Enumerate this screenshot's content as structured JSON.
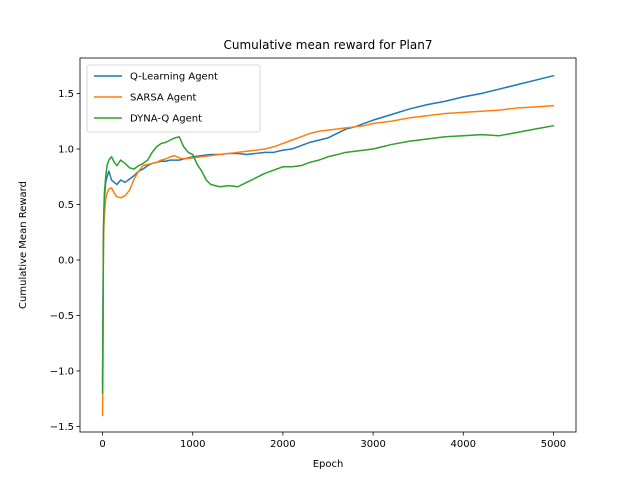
{
  "chart_data": {
    "type": "line",
    "title": "Cumulative mean reward for Plan7",
    "xlabel": "Epoch",
    "ylabel": "Cumulative Mean Reward",
    "xlim": [
      -250,
      5250
    ],
    "ylim": [
      -1.55,
      1.82
    ],
    "xticks": [
      0,
      1000,
      2000,
      3000,
      4000,
      5000
    ],
    "yticks": [
      -1.5,
      -1.0,
      -0.5,
      0.0,
      0.5,
      1.0,
      1.5
    ],
    "xtick_labels": [
      "0",
      "1000",
      "2000",
      "3000",
      "4000",
      "5000"
    ],
    "ytick_labels": [
      "−1.5",
      "−1.0",
      "−0.5",
      "0.0",
      "0.5",
      "1.0",
      "1.5"
    ],
    "grid": false,
    "legend_position": "top-left",
    "series": [
      {
        "name": "Q-Learning Agent",
        "color": "#1f77b4",
        "x": [
          0,
          5,
          10,
          20,
          35,
          50,
          70,
          100,
          130,
          160,
          200,
          250,
          300,
          350,
          400,
          450,
          500,
          550,
          600,
          650,
          700,
          750,
          800,
          850,
          900,
          1000,
          1100,
          1200,
          1300,
          1400,
          1500,
          1600,
          1700,
          1800,
          1900,
          2000,
          2100,
          2200,
          2300,
          2400,
          2500,
          2600,
          2700,
          2800,
          2900,
          3000,
          3200,
          3400,
          3600,
          3800,
          4000,
          4200,
          4400,
          4600,
          4800,
          5000
        ],
        "y": [
          -1.1,
          -0.4,
          0.2,
          0.55,
          0.7,
          0.75,
          0.8,
          0.72,
          0.7,
          0.68,
          0.72,
          0.7,
          0.73,
          0.76,
          0.8,
          0.82,
          0.85,
          0.87,
          0.88,
          0.89,
          0.89,
          0.9,
          0.9,
          0.9,
          0.91,
          0.93,
          0.94,
          0.95,
          0.95,
          0.96,
          0.96,
          0.95,
          0.96,
          0.97,
          0.97,
          0.99,
          1.0,
          1.03,
          1.06,
          1.08,
          1.1,
          1.14,
          1.18,
          1.2,
          1.23,
          1.26,
          1.31,
          1.36,
          1.4,
          1.43,
          1.47,
          1.5,
          1.54,
          1.58,
          1.62,
          1.66
        ]
      },
      {
        "name": "SARSA Agent",
        "color": "#ff7f0e",
        "x": [
          0,
          5,
          10,
          20,
          35,
          50,
          70,
          100,
          130,
          160,
          200,
          250,
          300,
          350,
          400,
          450,
          500,
          550,
          600,
          650,
          700,
          750,
          800,
          850,
          900,
          1000,
          1100,
          1200,
          1300,
          1400,
          1500,
          1600,
          1700,
          1800,
          1900,
          2000,
          2100,
          2200,
          2300,
          2400,
          2500,
          2600,
          2700,
          2800,
          2900,
          3000,
          3200,
          3400,
          3600,
          3800,
          4000,
          4200,
          4400,
          4600,
          4800,
          5000
        ],
        "y": [
          -1.4,
          -0.9,
          0.2,
          0.4,
          0.55,
          0.6,
          0.64,
          0.65,
          0.6,
          0.57,
          0.56,
          0.58,
          0.63,
          0.73,
          0.8,
          0.85,
          0.86,
          0.87,
          0.88,
          0.9,
          0.91,
          0.93,
          0.94,
          0.92,
          0.91,
          0.92,
          0.93,
          0.94,
          0.95,
          0.96,
          0.97,
          0.98,
          0.99,
          1.0,
          1.02,
          1.05,
          1.08,
          1.11,
          1.14,
          1.16,
          1.17,
          1.18,
          1.19,
          1.2,
          1.21,
          1.23,
          1.25,
          1.28,
          1.3,
          1.32,
          1.33,
          1.34,
          1.35,
          1.37,
          1.38,
          1.39
        ]
      },
      {
        "name": "DYNA-Q Agent",
        "color": "#2ca02c",
        "x": [
          0,
          5,
          10,
          20,
          35,
          50,
          70,
          100,
          130,
          160,
          200,
          250,
          300,
          350,
          400,
          450,
          500,
          550,
          600,
          650,
          700,
          750,
          800,
          850,
          900,
          950,
          1000,
          1050,
          1100,
          1150,
          1200,
          1300,
          1400,
          1500,
          1600,
          1700,
          1800,
          1900,
          2000,
          2100,
          2200,
          2300,
          2400,
          2500,
          2600,
          2700,
          2800,
          2900,
          3000,
          3200,
          3400,
          3600,
          3800,
          4000,
          4200,
          4400,
          4600,
          4800,
          5000
        ],
        "y": [
          -1.2,
          -0.5,
          0.3,
          0.6,
          0.75,
          0.85,
          0.9,
          0.93,
          0.88,
          0.85,
          0.9,
          0.87,
          0.83,
          0.82,
          0.85,
          0.87,
          0.9,
          0.97,
          1.02,
          1.05,
          1.06,
          1.08,
          1.1,
          1.11,
          1.02,
          0.97,
          0.95,
          0.86,
          0.8,
          0.72,
          0.68,
          0.66,
          0.67,
          0.66,
          0.7,
          0.74,
          0.78,
          0.81,
          0.84,
          0.84,
          0.85,
          0.88,
          0.9,
          0.93,
          0.95,
          0.97,
          0.98,
          0.99,
          1.0,
          1.04,
          1.07,
          1.09,
          1.11,
          1.12,
          1.13,
          1.12,
          1.15,
          1.18,
          1.21
        ]
      }
    ]
  }
}
